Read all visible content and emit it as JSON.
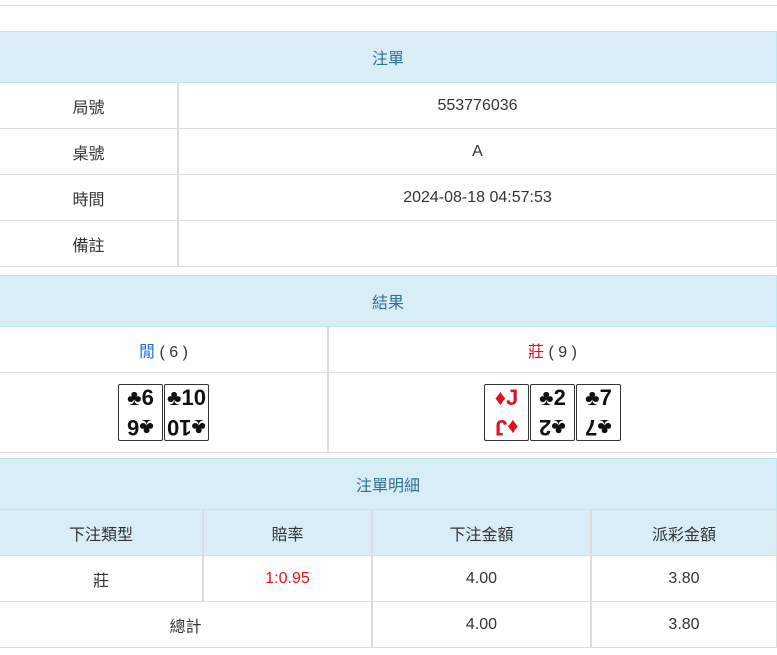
{
  "order": {
    "title": "注單",
    "rows": [
      {
        "label": "局號",
        "value": "553776036"
      },
      {
        "label": "桌號",
        "value": "A"
      },
      {
        "label": "時間",
        "value": "2024-08-18 04:57:53"
      },
      {
        "label": "備註",
        "value": ""
      }
    ]
  },
  "result": {
    "title": "結果",
    "player": {
      "label": "閒",
      "score": "( 6 )",
      "color": "#1a6fd0",
      "cards": [
        {
          "rank": "6",
          "suit": "♣",
          "color": "#111"
        },
        {
          "rank": "10",
          "suit": "♣",
          "color": "#111"
        }
      ]
    },
    "banker": {
      "label": "莊",
      "score": "( 9 )",
      "color": "#e8101b",
      "cards": [
        {
          "rank": "J",
          "suit": "♦",
          "color": "#e01020"
        },
        {
          "rank": "2",
          "suit": "♣",
          "color": "#111"
        },
        {
          "rank": "7",
          "suit": "♣",
          "color": "#111"
        }
      ]
    }
  },
  "detail": {
    "title": "注單明細",
    "headers": [
      "下注類型",
      "賠率",
      "下注金額",
      "派彩金額"
    ],
    "row": {
      "type": "莊",
      "odds": "1:0.95",
      "amount": "4.00",
      "payout": "3.80"
    },
    "total": {
      "label": "總計",
      "amount": "4.00",
      "payout": "3.80"
    }
  }
}
